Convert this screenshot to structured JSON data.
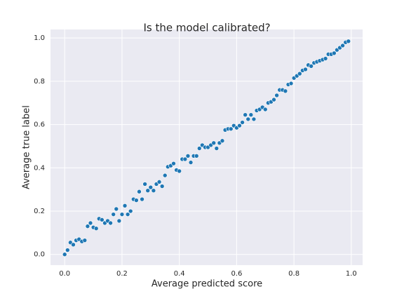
{
  "chart_data": {
    "type": "scatter",
    "title": "Is the model calibrated?",
    "xlabel": "Average predicted score",
    "ylabel": "Average true label",
    "color": "#1f77b4",
    "grid": true,
    "xlim": [
      -0.0495,
      1.0395
    ],
    "ylim": [
      -0.0495,
      1.0395
    ],
    "xticks": [
      {
        "value": 0,
        "label": "0.0"
      },
      0.2,
      0.4,
      0.6,
      0.8,
      {
        "value": 1,
        "label": "1.0"
      }
    ],
    "yticks": [
      {
        "value": 0,
        "label": "0.0"
      },
      0.2,
      0.4,
      0.6,
      0.8,
      {
        "value": 1,
        "label": "1.0"
      }
    ],
    "x": [
      0,
      0.01,
      0.02,
      0.03,
      0.04,
      0.05,
      0.06,
      0.07,
      0.08,
      0.09,
      0.1,
      0.11,
      0.12,
      0.13,
      0.14,
      0.15,
      0.16,
      0.17,
      0.18,
      0.19,
      0.2,
      0.21,
      0.22,
      0.23,
      0.24,
      0.25,
      0.26,
      0.27,
      0.28,
      0.29,
      0.3,
      0.31,
      0.32,
      0.33,
      0.34,
      0.35,
      0.36,
      0.37,
      0.38,
      0.39,
      0.4,
      0.41,
      0.42,
      0.43,
      0.44,
      0.45,
      0.46,
      0.47,
      0.48,
      0.49,
      0.5,
      0.51,
      0.52,
      0.53,
      0.54,
      0.55,
      0.56,
      0.57,
      0.58,
      0.59,
      0.6,
      0.61,
      0.62,
      0.63,
      0.64,
      0.65,
      0.66,
      0.67,
      0.68,
      0.69,
      0.7,
      0.71,
      0.72,
      0.73,
      0.74,
      0.75,
      0.76,
      0.77,
      0.78,
      0.79,
      0.8,
      0.81,
      0.82,
      0.83,
      0.84,
      0.85,
      0.86,
      0.87,
      0.88,
      0.89,
      0.9,
      0.91,
      0.92,
      0.93,
      0.94,
      0.95,
      0.96,
      0.97,
      0.98,
      0.99
    ],
    "values": [
      0,
      0.02,
      0.055,
      0.045,
      0.065,
      0.07,
      0.06,
      0.065,
      0.13,
      0.145,
      0.125,
      0.12,
      0.165,
      0.16,
      0.145,
      0.155,
      0.145,
      0.185,
      0.21,
      0.155,
      0.185,
      0.225,
      0.185,
      0.2,
      0.255,
      0.25,
      0.29,
      0.255,
      0.325,
      0.295,
      0.31,
      0.295,
      0.325,
      0.335,
      0.315,
      0.365,
      0.405,
      0.41,
      0.42,
      0.39,
      0.385,
      0.44,
      0.44,
      0.455,
      0.425,
      0.455,
      0.455,
      0.49,
      0.505,
      0.495,
      0.495,
      0.505,
      0.515,
      0.49,
      0.515,
      0.525,
      0.575,
      0.58,
      0.58,
      0.595,
      0.585,
      0.595,
      0.61,
      0.645,
      0.625,
      0.645,
      0.625,
      0.665,
      0.67,
      0.68,
      0.67,
      0.7,
      0.705,
      0.715,
      0.735,
      0.76,
      0.76,
      0.755,
      0.785,
      0.79,
      0.815,
      0.825,
      0.835,
      0.85,
      0.855,
      0.875,
      0.87,
      0.885,
      0.89,
      0.895,
      0.9,
      0.905,
      0.925,
      0.925,
      0.93,
      0.945,
      0.955,
      0.965,
      0.98,
      0.985
    ]
  }
}
